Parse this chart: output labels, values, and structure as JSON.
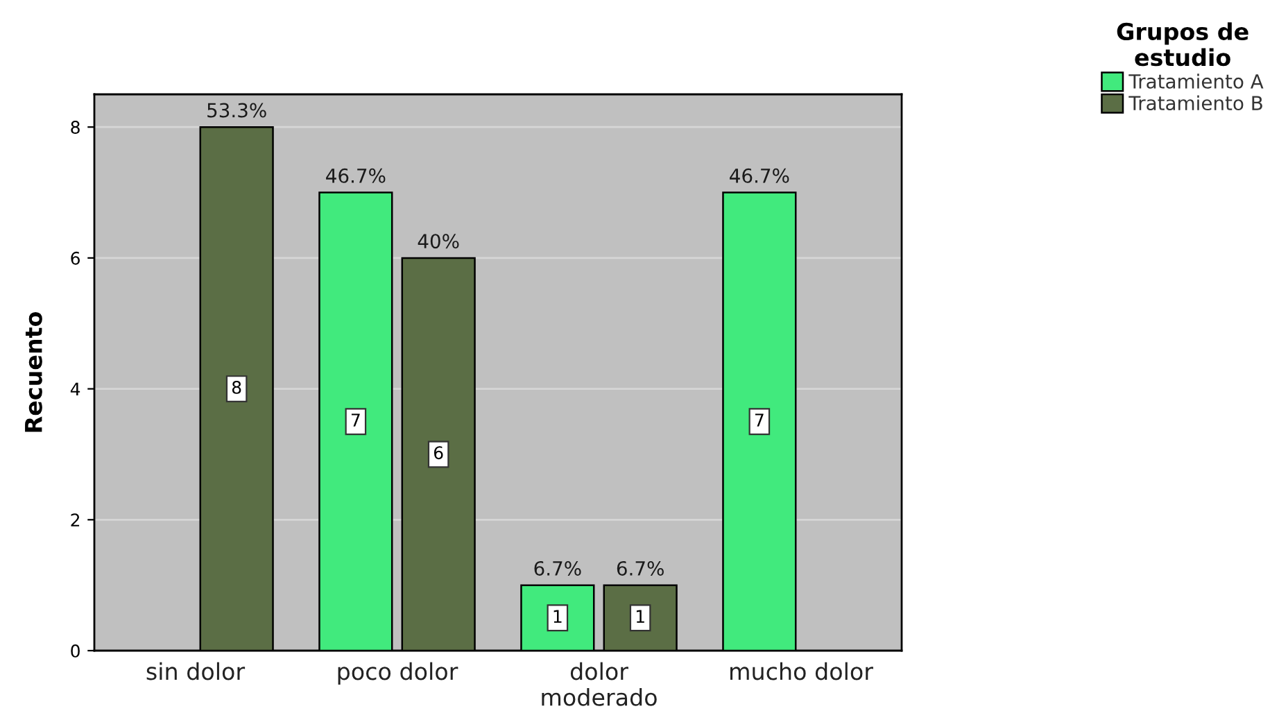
{
  "chart_data": {
    "type": "bar",
    "ylabel": "Recuento",
    "legend_title": "Grupos de\nestudio",
    "categories": [
      "sin dolor",
      "poco dolor",
      "dolor\nmoderado",
      "mucho dolor"
    ],
    "series": [
      {
        "name": "Tratamiento A",
        "color": "#41ea7d",
        "values": [
          null,
          7,
          1,
          7
        ]
      },
      {
        "name": "Tratamiento B",
        "color": "#5b6e45",
        "values": [
          8,
          6,
          1,
          null
        ]
      }
    ],
    "annotations": [
      {
        "text": "53.3%",
        "x": "sin dolor",
        "y": 8
      },
      {
        "text": "46.7%",
        "x": "poco dolor",
        "y": 7
      },
      {
        "text": "40%",
        "x": "poco dolor",
        "y": 6
      },
      {
        "text": "6.7%",
        "x": "dolor\nmoderado",
        "y": 1
      },
      {
        "text": "6.7%",
        "x": "dolor\nmoderado",
        "y": 1
      },
      {
        "text": "46.7%",
        "x": "mucho dolor",
        "y": 7
      }
    ],
    "ylim": [
      0,
      8.5
    ],
    "yticks": [
      0,
      2,
      4,
      6,
      8
    ],
    "grid": "y",
    "legend": "top right",
    "data_labels": true
  }
}
